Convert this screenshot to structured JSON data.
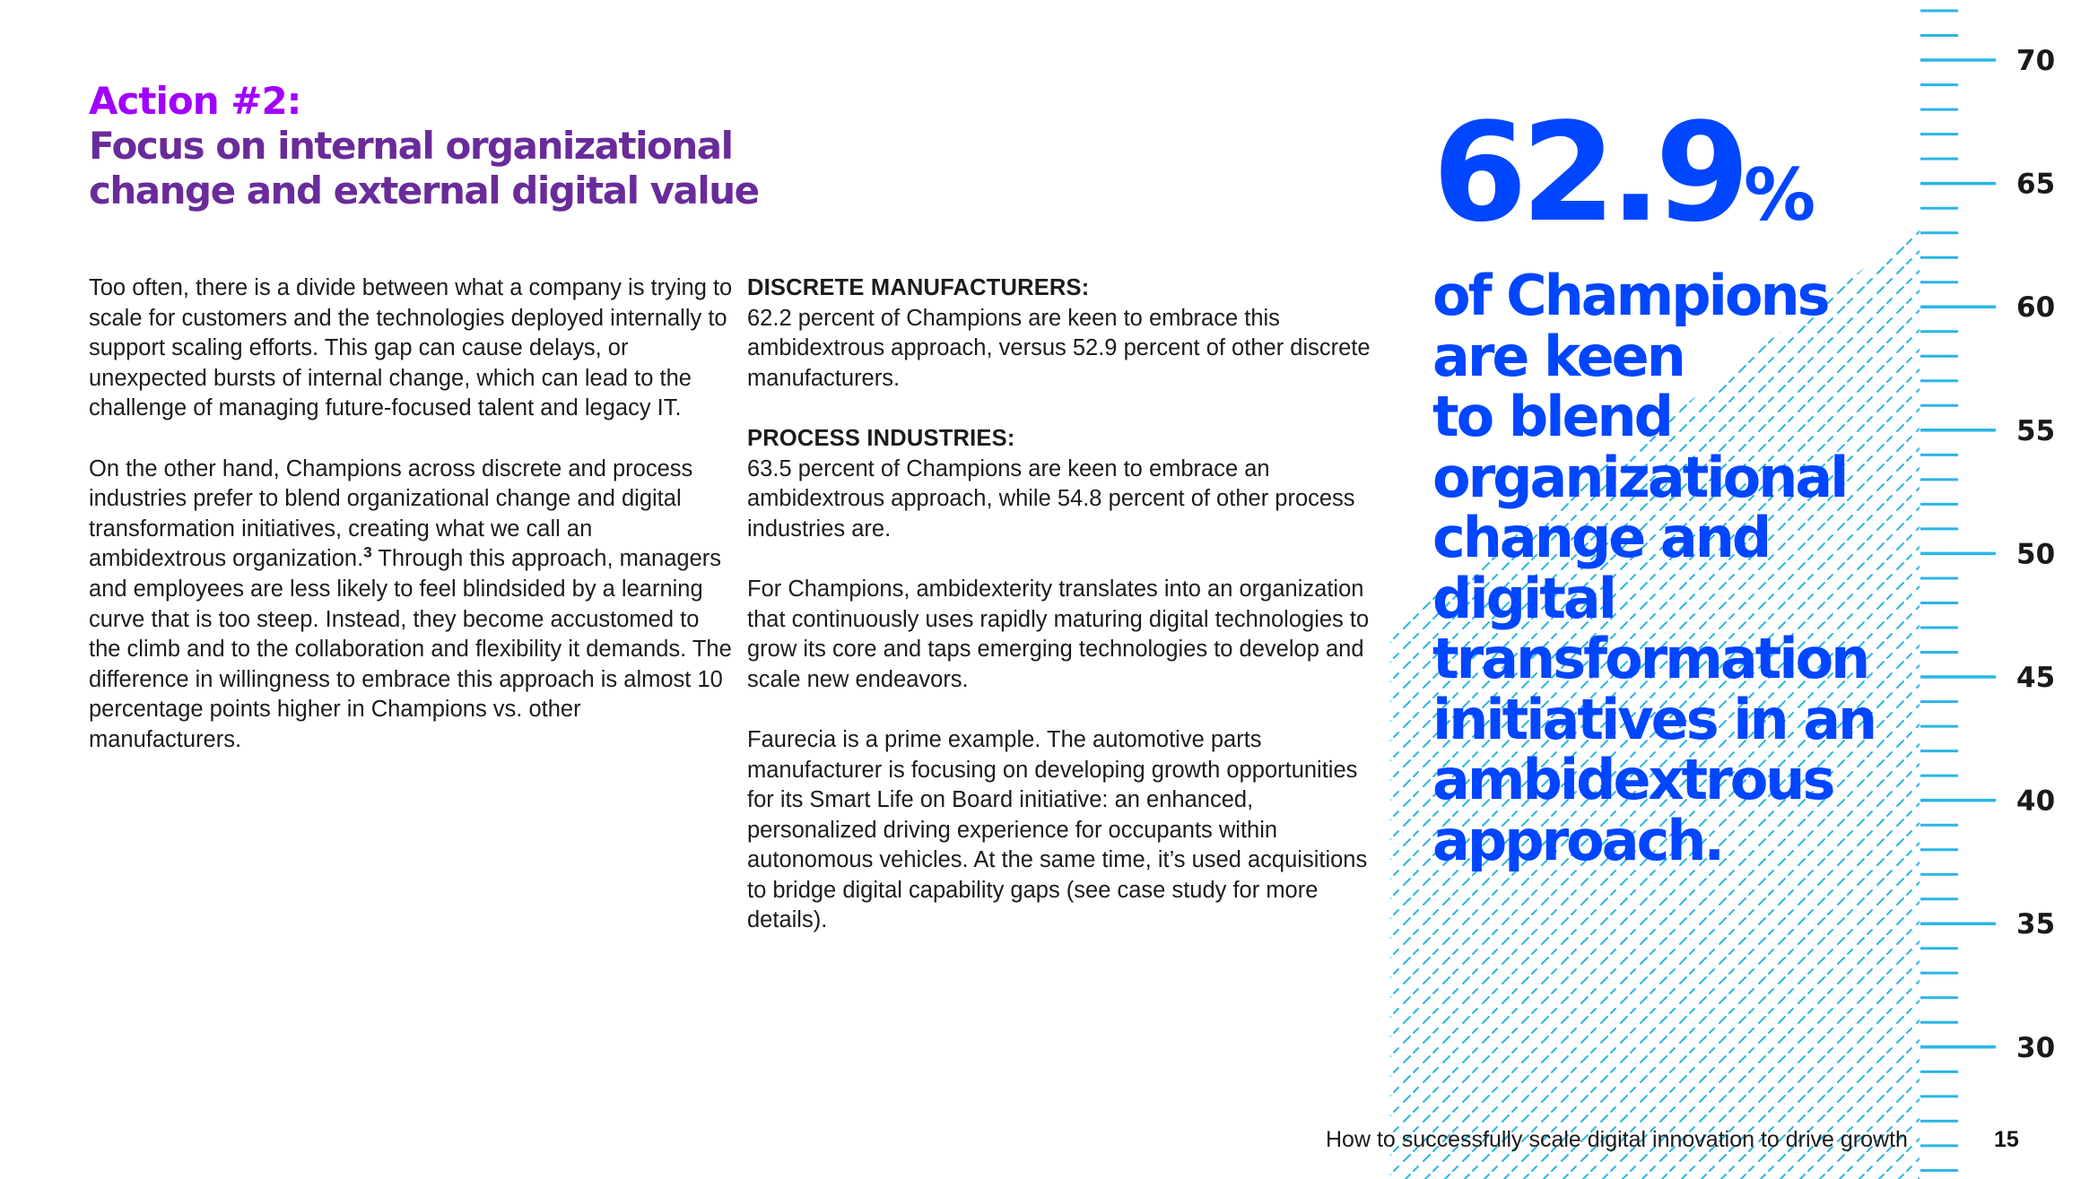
{
  "title": {
    "action": "Action #2:",
    "headline_line1": "Focus on internal organizational",
    "headline_line2": "change and external digital value"
  },
  "left_column": {
    "para1": "Too often, there is a divide between what a company is trying to scale for customers and the technologies deployed internally to support scaling efforts. This gap can cause delays, or unexpected bursts of internal change, which can lead to the challenge of managing future-focused talent and legacy IT.",
    "para2_before_note": "On the other hand, Champions across discrete and process industries prefer to blend organizational change and digital transformation initiatives, creating what we call an ambidextrous organization.",
    "footnote": "3",
    "para2_after_note": " Through this approach, managers and employees are less likely to feel blindsided by a learning curve that is too steep. Instead, they become accustomed to the climb and to the collaboration and flexibility it demands. The difference in willingness to embrace this approach is almost 10 percentage points higher in Champions vs. other manufacturers."
  },
  "middle_column": {
    "discrete_label": "DISCRETE MANUFACTURERS:",
    "discrete_text": "62.2 percent of Champions are keen to embrace this ambidextrous approach, versus 52.9 percent of other discrete manufacturers.",
    "process_label": "PROCESS INDUSTRIES:",
    "process_text": "63.5 percent of Champions are keen to embrace an ambidextrous approach, while 54.8 percent of other process industries are.",
    "para3": "For Champions, ambidexterity translates into an organization that continuously uses rapidly maturing digital technologies to grow its core and taps emerging technologies to develop and scale new endeavors.",
    "para4": "Faurecia is a prime example. The automotive parts manufacturer is focusing on developing growth opportunities for its Smart Life on Board initiative: an enhanced, personalized driving experience for occupants within autonomous vehicles. At the same time, it’s used acquisitions to bridge digital capability gaps (see case study for more details)."
  },
  "stat": {
    "value": "62.9",
    "unit": "%",
    "lines": [
      "of Champions",
      "are keen",
      "to blend",
      "organizational",
      "change and",
      "digital",
      "transformation",
      "initiatives in an",
      "ambidextrous",
      "approach."
    ]
  },
  "ruler": {
    "labels": [
      "70",
      "65",
      "60",
      "55",
      "50",
      "45",
      "40",
      "35",
      "30"
    ],
    "fill_level": 62.9,
    "color": "#0046ff",
    "hatch_color": "#29b6e6"
  },
  "footer": {
    "text": "How to successfully scale digital innovation to drive growth",
    "page": "15"
  }
}
